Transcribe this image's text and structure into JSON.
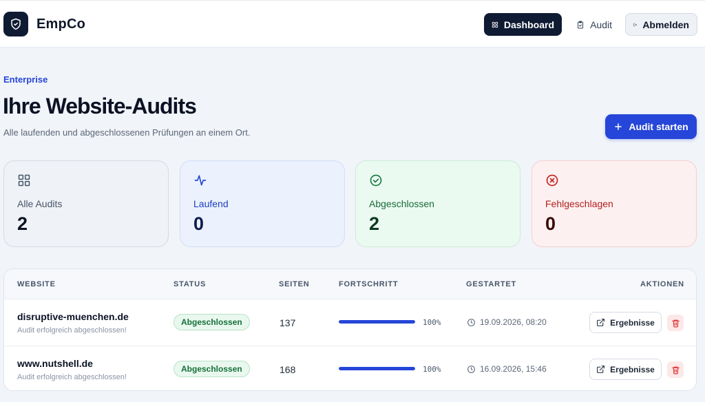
{
  "header": {
    "brand": "EmpCo",
    "nav": {
      "dashboard": "Dashboard",
      "audit": "Audit",
      "logout": "Abmelden"
    }
  },
  "hero": {
    "eyebrow": "Enterprise",
    "title": "Ihre Website-Audits",
    "subtitle": "Alle laufenden und abgeschlossenen Prüfungen an einem Ort.",
    "start_button": "Audit starten"
  },
  "stats": {
    "all": {
      "label": "Alle Audits",
      "value": "2"
    },
    "running": {
      "label": "Laufend",
      "value": "0"
    },
    "completed": {
      "label": "Abgeschlossen",
      "value": "2"
    },
    "failed": {
      "label": "Fehlgeschlagen",
      "value": "0"
    }
  },
  "table": {
    "columns": {
      "website": "WEBSITE",
      "status": "STATUS",
      "pages": "SEITEN",
      "progress": "FORTSCHRITT",
      "started": "GESTARTET",
      "actions": "AKTIONEN"
    },
    "rows": [
      {
        "site": "disruptive-muenchen.de",
        "message": "Audit erfolgreich abgeschlossen!",
        "status": "Abgeschlossen",
        "pages": "137",
        "progress": 100,
        "progress_label": "100%",
        "started": "19.09.2026, 08:20",
        "results_button": "Ergebnisse"
      },
      {
        "site": "www.nutshell.de",
        "message": "Audit erfolgreich abgeschlossen!",
        "status": "Abgeschlossen",
        "pages": "168",
        "progress": 100,
        "progress_label": "100%",
        "started": "16.09.2026, 15:46",
        "results_button": "Ergebnisse"
      }
    ]
  },
  "colors": {
    "navy": "#0f1b33",
    "accent": "#2546d8",
    "success": "#15703a",
    "danger": "#b21e1e"
  },
  "icons": {
    "logo": "shield-check-icon",
    "dashboard": "grid-icon",
    "audit": "clipboard-check-icon",
    "logout": "logout-icon",
    "plus": "plus-icon",
    "running": "activity-icon",
    "completed": "check-circle-icon",
    "failed": "x-circle-icon",
    "date": "clock-icon",
    "results": "external-link-icon",
    "delete": "trash-icon"
  }
}
